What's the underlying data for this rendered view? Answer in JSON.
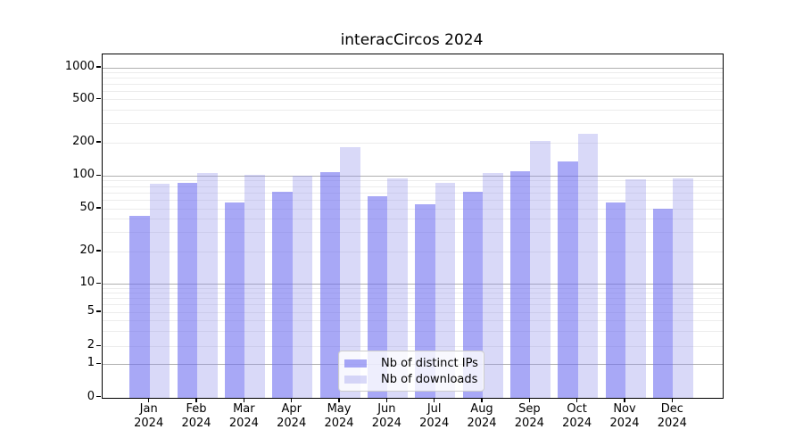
{
  "title": "interacCircos 2024",
  "legend": {
    "items": [
      {
        "label": "Nb of distinct IPs",
        "color": "rgba(110,110,240,0.60)"
      },
      {
        "label": "Nb of downloads",
        "color": "rgba(145,145,235,0.35)"
      }
    ],
    "position": "lower center"
  },
  "colors": {
    "distinct_ips_bar": "rgba(110,110,240,0.60)",
    "downloads_bar": "rgba(145,145,235,0.35)",
    "major_gridline": "#b0b0b0",
    "minor_gridline": "#ececec",
    "spine": "#000000",
    "text": "#000000"
  },
  "chart_data": {
    "type": "bar",
    "title": "interacCircos 2024",
    "year": "2024",
    "months": [
      "Jan",
      "Feb",
      "Mar",
      "Apr",
      "May",
      "Jun",
      "Jul",
      "Aug",
      "Sep",
      "Oct",
      "Nov",
      "Dec"
    ],
    "categories": [
      "Jan 2024",
      "Feb 2024",
      "Mar 2024",
      "Apr 2024",
      "May 2024",
      "Jun 2024",
      "Jul 2024",
      "Aug 2024",
      "Sep 2024",
      "Oct 2024",
      "Nov 2024",
      "Dec 2024"
    ],
    "series": [
      {
        "name": "Nb of distinct IPs",
        "values": [
          43,
          86,
          57,
          72,
          108,
          65,
          55,
          71,
          110,
          135,
          57,
          50
        ]
      },
      {
        "name": "Nb of downloads",
        "values": [
          85,
          106,
          103,
          101,
          183,
          95,
          86,
          107,
          208,
          240,
          93,
          95
        ]
      }
    ],
    "xlabel": "",
    "ylabel": "",
    "yscale": "log-like (1-2-5 ticks, 0 baseline)",
    "y_ticks": [
      0,
      1,
      2,
      5,
      10,
      20,
      50,
      100,
      200,
      500,
      1000
    ],
    "ylim": [
      0,
      1330
    ],
    "grid": "horizontal, log major + minor",
    "legend_position": "lower center"
  }
}
